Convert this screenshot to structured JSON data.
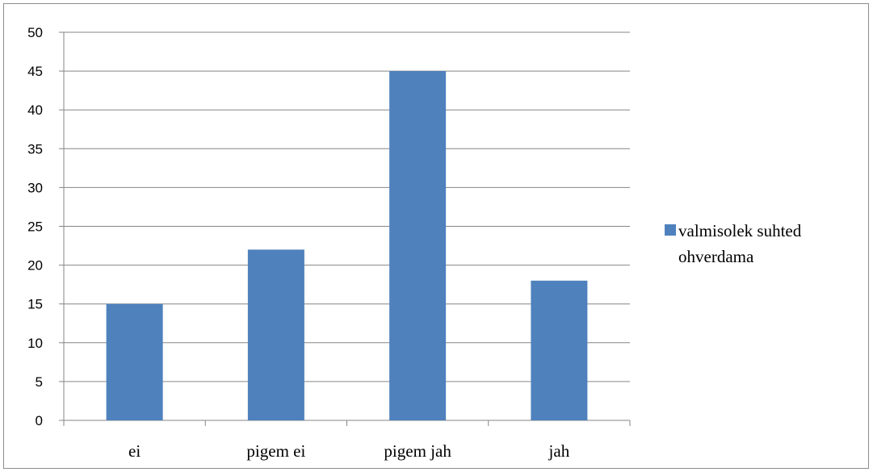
{
  "chart_data": {
    "type": "bar",
    "categories": [
      "ei",
      "pigem ei",
      "pigem jah",
      "jah"
    ],
    "series": [
      {
        "name": "valmisolek suhted ohverdama",
        "values": [
          15,
          22,
          45,
          18
        ],
        "color": "#4f81bd"
      }
    ],
    "ylim": [
      0,
      50
    ],
    "yticks": [
      0,
      5,
      10,
      15,
      20,
      25,
      30,
      35,
      40,
      45,
      50
    ],
    "grid": true,
    "legend": {
      "position": "right",
      "lines": [
        "valmisolek suhted",
        "ohverdama"
      ]
    }
  }
}
